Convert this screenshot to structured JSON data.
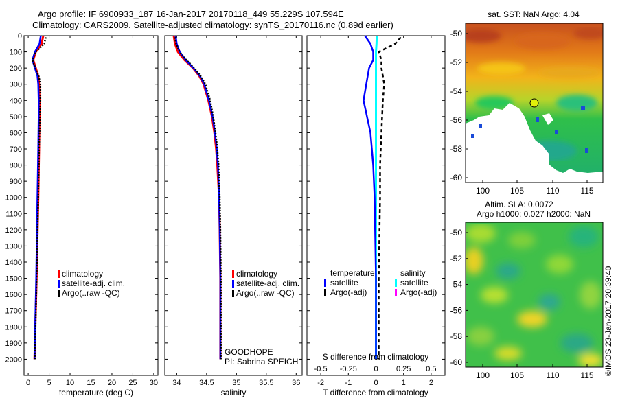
{
  "header": {
    "line1": "Argo profile: IF 6900933_187 16-Jan-2017 20170118_449 55.229S 107.594E",
    "line2": "Climatology: CARS2009. Satellite-adjusted climatology: synTS_20170116.nc (0.89d earlier)"
  },
  "footer_text": {
    "project": "GOODHOPE",
    "pi": "PI: Sabrina SPEICH",
    "credit": "©IMOS 23-Jan-2017 20:39:40"
  },
  "colors": {
    "climatology": "#ff0000",
    "satellite": "#0000ff",
    "argo": "#000000",
    "sat_salinity": "#00ffff",
    "argo_salinity": "#ff00ff"
  },
  "chart_data": [
    {
      "type": "line",
      "xlabel": "temperature (deg C)",
      "ylim": [
        2100,
        0
      ],
      "xlim": [
        -1,
        31
      ],
      "xticks": [
        0,
        5,
        10,
        15,
        20,
        25,
        30
      ],
      "yticks": [
        0,
        100,
        200,
        300,
        400,
        500,
        600,
        700,
        800,
        900,
        1000,
        1100,
        1200,
        1300,
        1400,
        1500,
        1600,
        1700,
        1800,
        1900,
        2000
      ],
      "legend": [
        "climatology",
        "satellite-adj. clim.",
        "Argo(..raw -QC)"
      ],
      "series": [
        {
          "name": "climatology",
          "depth": [
            0,
            50,
            100,
            150,
            200,
            250,
            300,
            400,
            500,
            700,
            1000,
            1500,
            2000
          ],
          "values": [
            3.6,
            3.2,
            1.8,
            1.2,
            1.8,
            2.4,
            2.6,
            2.7,
            2.7,
            2.6,
            2.4,
            2.0,
            1.5
          ]
        },
        {
          "name": "satellite-adj. clim.",
          "depth": [
            0,
            50,
            100,
            150,
            200,
            250,
            300,
            400,
            500,
            700,
            1000,
            1500,
            2000
          ],
          "values": [
            3.0,
            2.7,
            1.6,
            1.0,
            1.6,
            2.2,
            2.4,
            2.5,
            2.5,
            2.4,
            2.2,
            1.9,
            1.5
          ]
        },
        {
          "name": "Argo(..raw -QC)",
          "depth": [
            10,
            50,
            100,
            150,
            200,
            250,
            300,
            400,
            500,
            700,
            1000,
            1500,
            2000
          ],
          "values": [
            4.2,
            3.8,
            1.8,
            1.0,
            1.7,
            2.5,
            2.9,
            2.9,
            2.8,
            2.6,
            2.4,
            2.0,
            1.6
          ]
        }
      ]
    },
    {
      "type": "line",
      "xlabel": "salinity",
      "ylim": [
        2100,
        0
      ],
      "xlim": [
        33.8,
        36.1
      ],
      "xticks": [
        34,
        34.5,
        35,
        35.5,
        36
      ],
      "legend": [
        "climatology",
        "satellite-adj. clim.",
        "Argo(..raw -QC)"
      ],
      "series": [
        {
          "name": "climatology",
          "depth": [
            0,
            50,
            100,
            150,
            200,
            250,
            300,
            400,
            500,
            600,
            700,
            800,
            1000,
            1200,
            1500,
            1800,
            2000
          ],
          "values": [
            33.95,
            33.97,
            34.02,
            34.13,
            34.27,
            34.38,
            34.45,
            34.53,
            34.59,
            34.63,
            34.66,
            34.68,
            34.71,
            34.72,
            34.73,
            34.73,
            34.73
          ]
        },
        {
          "name": "satellite-adj. clim.",
          "depth": [
            0,
            50,
            100,
            150,
            200,
            250,
            300,
            400,
            500,
            600,
            700,
            800,
            1000,
            1200,
            1500,
            1800,
            2000
          ],
          "values": [
            33.98,
            34.0,
            34.05,
            34.15,
            34.28,
            34.39,
            34.46,
            34.54,
            34.6,
            34.64,
            34.67,
            34.69,
            34.71,
            34.72,
            34.73,
            34.73,
            34.73
          ]
        },
        {
          "name": "Argo(..raw -QC)",
          "depth": [
            10,
            50,
            100,
            150,
            200,
            250,
            300,
            400,
            500,
            600,
            700,
            800,
            1000,
            1200,
            1500,
            1800,
            2000
          ],
          "values": [
            33.97,
            33.99,
            34.05,
            34.16,
            34.3,
            34.4,
            34.48,
            34.56,
            34.61,
            34.65,
            34.68,
            34.7,
            34.72,
            34.73,
            34.74,
            34.74,
            34.74
          ]
        }
      ]
    },
    {
      "type": "line",
      "xlabel": "T difference from climatology",
      "top_label": "S difference from climatology",
      "ylim": [
        2100,
        0
      ],
      "xlim": [
        -2.5,
        2.5
      ],
      "xticks": [
        -2,
        -1,
        0,
        1,
        2
      ],
      "xtick_labels": [
        "-2",
        "-1",
        "0",
        "1",
        "2"
      ],
      "top_ticks": [
        -0.5,
        -0.25,
        0,
        0.25,
        0.5
      ],
      "top_tick_labels": [
        "-0.5",
        "-0.25",
        "0",
        "0.25",
        "0.5"
      ],
      "legend_headers": [
        "temperature",
        "salinity"
      ],
      "legend": [
        "satellite",
        "Argo(-adj)",
        "satellite",
        "Argo(-adj)"
      ],
      "series": [
        {
          "name": "satellite",
          "group": "temperature",
          "depth": [
            0,
            50,
            100,
            150,
            200,
            300,
            400,
            600,
            800,
            1000,
            1500,
            2000
          ],
          "values": [
            -0.4,
            -0.2,
            -0.1,
            -0.1,
            -0.25,
            -0.35,
            -0.45,
            -0.2,
            -0.1,
            -0.05,
            0.0,
            0.0
          ]
        },
        {
          "name": "Argo(-adj)",
          "group": "temperature",
          "depth": [
            10,
            50,
            100,
            150,
            200,
            300,
            400,
            600,
            800,
            1000,
            1500,
            2000
          ],
          "values": [
            0.9,
            0.7,
            0.1,
            0.2,
            0.2,
            0.3,
            0.25,
            0.2,
            0.15,
            0.15,
            0.1,
            0.1
          ]
        },
        {
          "name": "satellite",
          "group": "salinity",
          "depth": [
            0,
            50,
            100,
            200,
            400,
            800,
            1200,
            2000
          ],
          "values": [
            0.03,
            0.02,
            0.0,
            0.0,
            0.0,
            0.0,
            0.0,
            0.0
          ]
        }
      ]
    }
  ],
  "maps": {
    "sst": {
      "title": "sat. SST: NaN Argo: 4.04",
      "xticks": [
        "100",
        "105",
        "110",
        "115"
      ],
      "yticks": [
        "-50",
        "-52",
        "-54",
        "-56",
        "-58",
        "-60"
      ]
    },
    "sla": {
      "title_line1": "Altim. SLA: 0.0072",
      "title_line2": "Argo h1000: 0.027 h2000: NaN",
      "xticks": [
        "100",
        "105",
        "110",
        "115"
      ],
      "yticks": [
        "-50",
        "-52",
        "-54",
        "-56",
        "-58",
        "-60"
      ]
    },
    "argo_position": {
      "lon": 107.594,
      "lat": -55.229
    }
  }
}
